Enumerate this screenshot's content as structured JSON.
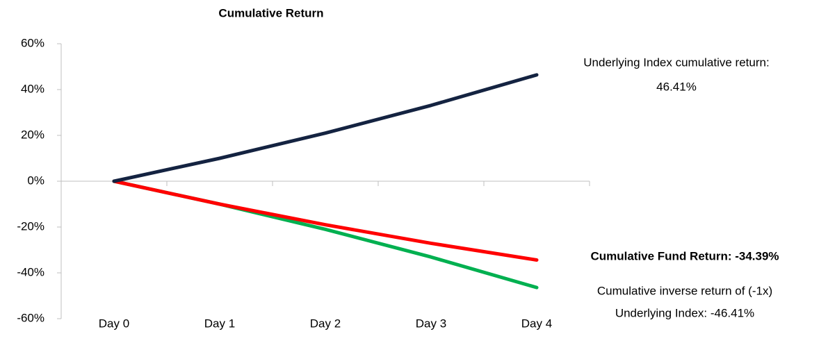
{
  "chart_data": {
    "type": "line",
    "title": "Cumulative Return",
    "categories": [
      "Day 0",
      "Day 1",
      "Day 2",
      "Day 3",
      "Day 4"
    ],
    "series": [
      {
        "color": "#00b050",
        "values": [
          0,
          -10,
          -21,
          -33.1,
          -46.41
        ]
      },
      {
        "color": "#ff0000",
        "values": [
          0,
          -10,
          -19,
          -27.1,
          -34.39
        ]
      },
      {
        "color": "#142341",
        "values": [
          0,
          10,
          21,
          33.1,
          46.41
        ]
      }
    ],
    "ylim": [
      -60,
      60
    ],
    "yticks": [
      {
        "value": -60,
        "label": "-60%"
      },
      {
        "value": -40,
        "label": "-40%"
      },
      {
        "value": -20,
        "label": "-20%"
      },
      {
        "value": 0,
        "label": "0%"
      },
      {
        "value": 20,
        "label": "20%"
      },
      {
        "value": 40,
        "label": "40%"
      },
      {
        "value": 60,
        "label": "60%"
      }
    ],
    "annotations": [
      {
        "lines": [
          "Underlying Index cumulative return:",
          "46.41%"
        ],
        "bold": false
      },
      {
        "lines": [
          "Cumulative Fund Return: -34.39%"
        ],
        "bold": true
      },
      {
        "lines": [
          "Cumulative inverse return of (-1x)",
          "Underlying Index: -46.41%"
        ],
        "bold": false
      }
    ]
  }
}
